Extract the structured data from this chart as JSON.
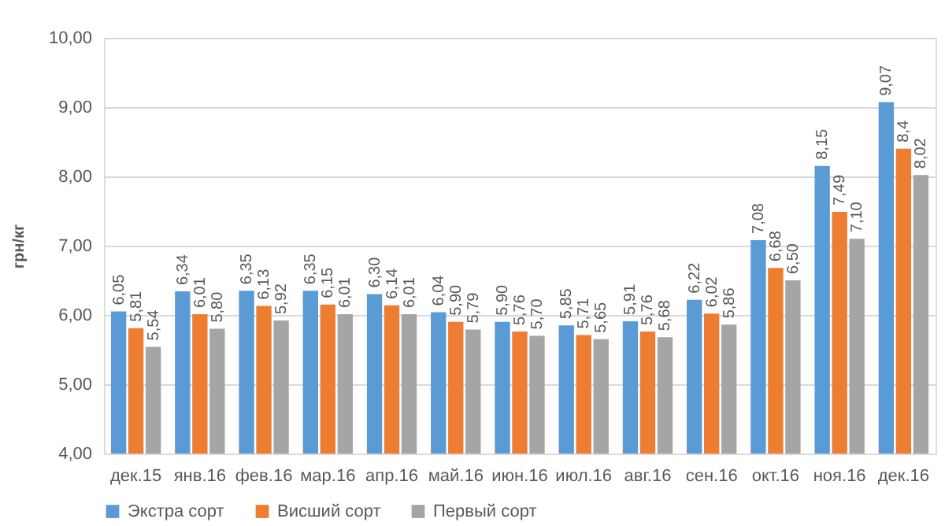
{
  "chart_data": {
    "type": "bar",
    "ylabel": "грн/кг",
    "categories": [
      "дек.15",
      "янв.16",
      "фев.16",
      "мар.16",
      "апр.16",
      "май.16",
      "июн.16",
      "июл.16",
      "авг.16",
      "сен.16",
      "окт.16",
      "ноя.16",
      "дек.16"
    ],
    "series": [
      {
        "name": "Экстра сорт",
        "color": "#5b9bd5",
        "values": [
          6.05,
          6.34,
          6.35,
          6.35,
          6.3,
          6.04,
          5.9,
          5.85,
          5.91,
          6.22,
          7.08,
          8.15,
          9.07
        ],
        "value_labels": [
          "6,05",
          "6,34",
          "6,35",
          "6,35",
          "6,30",
          "6,04",
          "5,90",
          "5,85",
          "5,91",
          "6,22",
          "7,08",
          "8,15",
          "9,07"
        ]
      },
      {
        "name": "Висший сорт",
        "color": "#ed7d31",
        "values": [
          5.81,
          6.01,
          6.13,
          6.15,
          6.14,
          5.9,
          5.76,
          5.71,
          5.76,
          6.02,
          6.68,
          7.49,
          8.4
        ],
        "value_labels": [
          "5,81",
          "6,01",
          "6,13",
          "6,15",
          "6,14",
          "5,90",
          "5,76",
          "5,71",
          "5,76",
          "6,02",
          "6,68",
          "7,49",
          "8,4"
        ]
      },
      {
        "name": "Первый сорт",
        "color": "#a5a5a5",
        "values": [
          5.54,
          5.8,
          5.92,
          6.01,
          6.01,
          5.79,
          5.7,
          5.65,
          5.68,
          5.86,
          6.5,
          7.1,
          8.02
        ],
        "value_labels": [
          "5,54",
          "5,80",
          "5,92",
          "6,01",
          "6,01",
          "5,79",
          "5,70",
          "5,65",
          "5,68",
          "5,86",
          "6,50",
          "7,10",
          "8,02"
        ]
      }
    ],
    "ylim": [
      4,
      10
    ],
    "yticks": [
      {
        "value": 4,
        "label": "4,00"
      },
      {
        "value": 5,
        "label": "5,00"
      },
      {
        "value": 6,
        "label": "6,00"
      },
      {
        "value": 7,
        "label": "7,00"
      },
      {
        "value": 8,
        "label": "8,00"
      },
      {
        "value": 9,
        "label": "9,00"
      },
      {
        "value": 10,
        "label": "10,00"
      }
    ],
    "grid": "y",
    "legend": "bottom"
  }
}
